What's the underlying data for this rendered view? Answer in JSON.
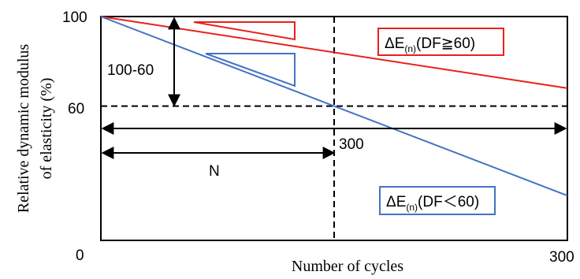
{
  "chart_data": {
    "type": "line",
    "xlabel": "Number of cycles",
    "ylabel_line1": "Relative dynamic modulus",
    "ylabel_line2": "of elasticity  (%)",
    "x_ticks": [
      "0",
      "300"
    ],
    "y_ticks": [
      "100",
      "60"
    ],
    "xlim": [
      0,
      300
    ],
    "ylim": [
      0,
      100
    ],
    "series": [
      {
        "name": "ΔE(n)(DF≧60)",
        "color": "#e8211b",
        "x": [
          0,
          300
        ],
        "y": [
          100,
          68
        ]
      },
      {
        "name": "ΔE(n)(DF＜60)",
        "color": "#4472c4",
        "x": [
          0,
          300
        ],
        "y": [
          100,
          20
        ]
      }
    ],
    "reference_lines": {
      "horizontal_y": 60,
      "vertical_x": 150
    },
    "annotations": {
      "drop_label": "100-60",
      "span_label": "300",
      "n_label": "N"
    },
    "legend_red": {
      "prefix": "ΔE",
      "subscript": "(n)",
      "suffix": "(DF≧60)"
    },
    "legend_blue": {
      "prefix": "ΔE",
      "subscript": "(n)",
      "suffix": "(DF＜60)"
    }
  }
}
